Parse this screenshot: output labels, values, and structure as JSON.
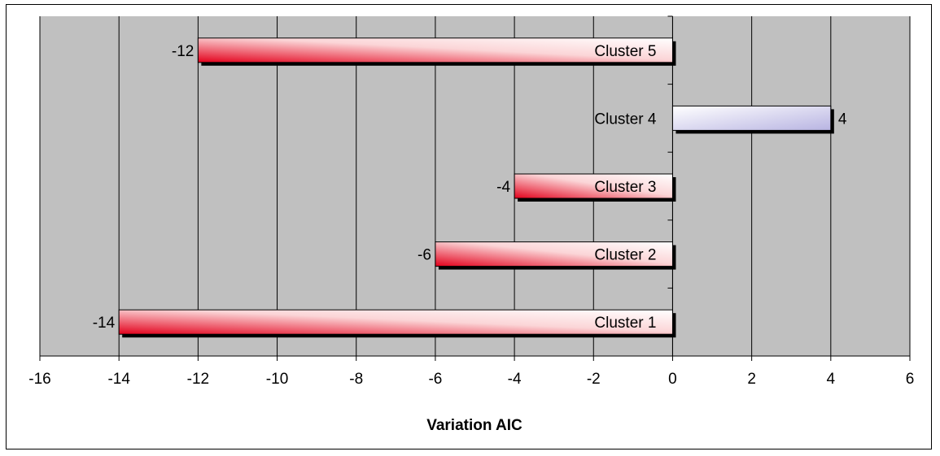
{
  "chart_data": {
    "type": "bar",
    "orientation": "horizontal",
    "categories": [
      "Cluster 1",
      "Cluster 2",
      "Cluster 3",
      "Cluster 4",
      "Cluster 5"
    ],
    "values": [
      -14,
      -6,
      -4,
      4,
      -12
    ],
    "data_labels": [
      "-14",
      "-6",
      "-4",
      "4",
      "-12"
    ],
    "xlabel": "Variation AIC",
    "ylabel": "",
    "title": "",
    "xlim": [
      -16,
      6
    ],
    "xticks": [
      -16,
      -14,
      -12,
      -10,
      -8,
      -6,
      -4,
      -2,
      0,
      2,
      4,
      6
    ],
    "xtick_labels": [
      "-16",
      "-14",
      "-12",
      "-10",
      "-8",
      "-6",
      "-4",
      "-2",
      "0",
      "2",
      "4",
      "6"
    ],
    "grid": true,
    "legend": "none",
    "colors": {
      "plot_background": "#c0c0c0",
      "negative_bar_dark": "#e3001b",
      "negative_bar_light": "#ffffff",
      "positive_bar_dark": "#b8b4e2",
      "positive_bar_light": "#ffffff",
      "shadow": "#000000"
    }
  }
}
